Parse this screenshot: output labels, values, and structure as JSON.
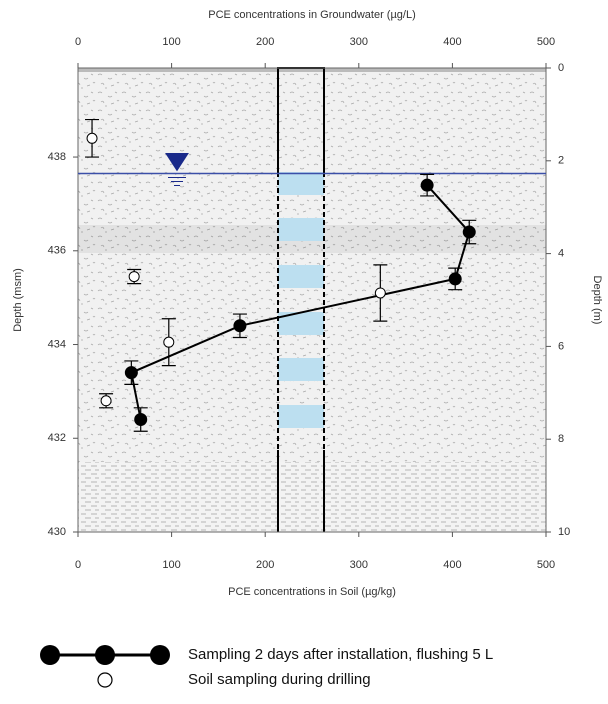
{
  "chart_data": {
    "type": "scatter",
    "xlabel": "PCE concentrations in Soil (µg/kg)",
    "x2label": "PCE concentrations in Groundwater (µg/L)",
    "ylabel": "Depth (msm)",
    "y2label": "Depth (m)",
    "xlim": [
      0,
      500
    ],
    "xticks": [
      0,
      100,
      200,
      300,
      400,
      500
    ],
    "x2lim": [
      0,
      500
    ],
    "x2ticks": [
      0,
      100,
      200,
      300,
      400,
      500
    ],
    "ylim": [
      430,
      439.9
    ],
    "yticks": [
      430,
      432,
      434,
      436,
      438
    ],
    "y2lim": [
      10,
      0
    ],
    "y2ticks": [
      0,
      2,
      4,
      6,
      8,
      10
    ],
    "water_level": 437.65,
    "series": [
      {
        "name": "Sampling 2 days after installation, flushing 5 L",
        "color": "#000000",
        "marker": "filled",
        "line": true,
        "xaxis": "x2",
        "x": [
          373,
          418,
          403,
          173,
          57,
          67
        ],
        "values": [
          437.4,
          436.4,
          435.4,
          434.4,
          433.4,
          432.4
        ],
        "errors": [
          0.23,
          0.25,
          0.23,
          0.25,
          0.25,
          0.25
        ]
      },
      {
        "name": "Soil sampling during drilling",
        "color": "#000000",
        "marker": "open",
        "line": false,
        "x": [
          15,
          60,
          323,
          97,
          30
        ],
        "values": [
          438.4,
          435.45,
          435.1,
          434.05,
          432.8
        ],
        "errors": [
          0.4,
          0.15,
          0.6,
          0.5,
          0.15
        ]
      }
    ]
  }
}
